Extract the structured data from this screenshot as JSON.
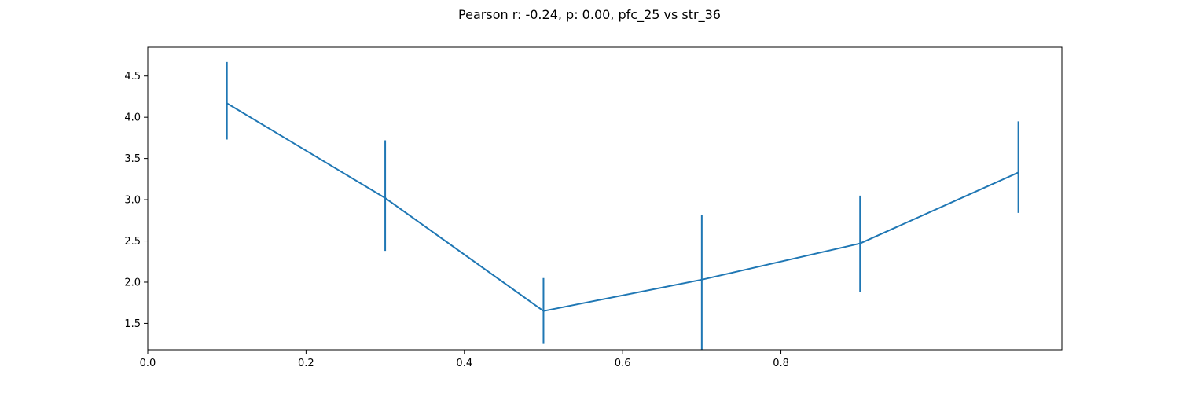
{
  "chart_data": {
    "type": "line",
    "title": "Pearson r: -0.24, p: 0.00, pfc_25 vs str_36",
    "xlabel": "",
    "ylabel": "",
    "x": [
      0.1,
      0.3,
      0.5,
      0.7,
      0.9,
      1.1
    ],
    "series": [
      {
        "values": [
          4.17,
          3.02,
          1.65,
          2.03,
          2.47,
          3.33
        ],
        "error_low": [
          3.73,
          2.38,
          1.25,
          1.18,
          1.88,
          2.84
        ],
        "error_high": [
          4.67,
          3.72,
          2.05,
          2.82,
          3.05,
          3.95
        ]
      }
    ],
    "xlim": [
      0.0,
      1.155
    ],
    "ylim": [
      1.18,
      4.85
    ],
    "xticks": [
      0.0,
      0.2,
      0.4,
      0.6,
      0.8
    ],
    "xtick_labels": [
      "0.0",
      "0.2",
      "0.4",
      "0.6",
      "0.8"
    ],
    "yticks": [
      1.5,
      2.0,
      2.5,
      3.0,
      3.5,
      4.0,
      4.5
    ],
    "ytick_labels": [
      "1.5",
      "2.0",
      "2.5",
      "3.0",
      "3.5",
      "4.0",
      "4.5"
    ],
    "grid": false,
    "colors": {
      "line": "#1f77b4",
      "axes": "#000000",
      "background": "#ffffff"
    }
  }
}
